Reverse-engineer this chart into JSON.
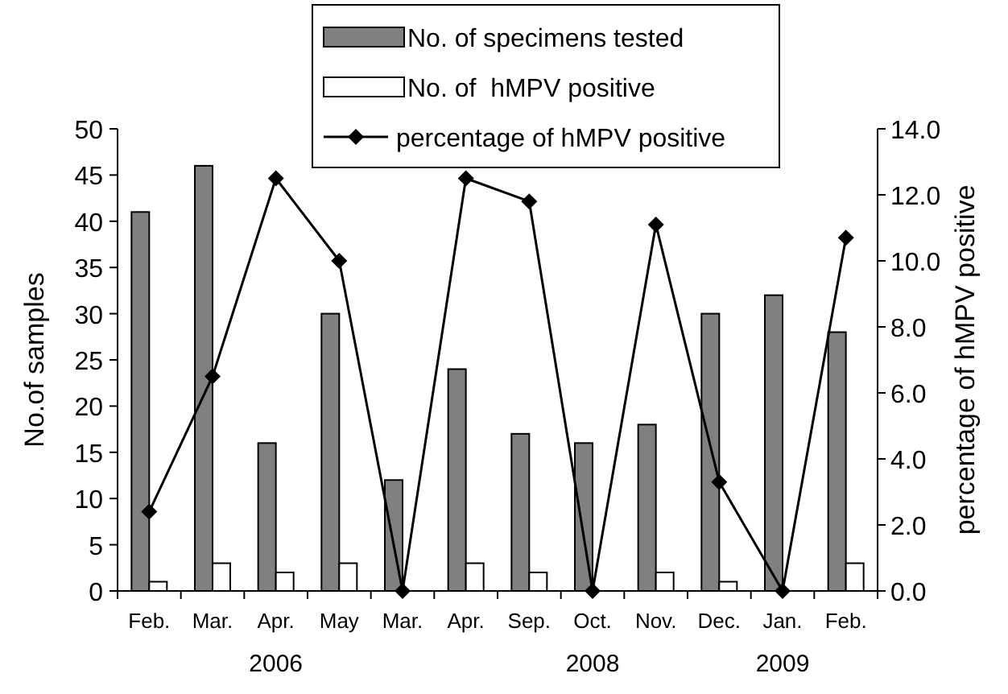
{
  "chart_data": {
    "type": "bar",
    "ylabel": "No.of samples",
    "y2label": "percentage of hMPV positive",
    "categories": [
      "Feb.",
      "Mar.",
      "Apr.",
      "May",
      "Mar.",
      "Apr.",
      "Sep.",
      "Oct.",
      "Nov.",
      "Dec.",
      "Jan.",
      "Feb."
    ],
    "series": [
      {
        "name": "No. of specimens tested",
        "color": "#808080",
        "values": [
          41,
          46,
          16,
          30,
          12,
          24,
          17,
          16,
          18,
          30,
          32,
          28
        ]
      },
      {
        "name": "No. of  hMPV positive",
        "color": "#ffffff",
        "values": [
          1,
          3,
          2,
          3,
          0,
          3,
          2,
          0,
          2,
          1,
          0,
          3
        ]
      },
      {
        "name": "percentage of hMPV positive",
        "type": "line",
        "axis": "y2",
        "color": "#000000",
        "marker": "diamond",
        "values": [
          2.4,
          6.5,
          12.5,
          10.0,
          0.0,
          12.5,
          11.8,
          0.0,
          11.1,
          3.3,
          0.0,
          10.7
        ]
      }
    ],
    "ylim": [
      0,
      50
    ],
    "yticks": [
      0,
      5,
      10,
      15,
      20,
      25,
      30,
      35,
      40,
      45,
      50
    ],
    "y2lim": [
      0,
      14
    ],
    "y2ticks": [
      {
        "value": 0,
        "label": "0.0"
      },
      {
        "value": 2,
        "label": "2.0"
      },
      {
        "value": 4,
        "label": "4.0"
      },
      {
        "value": 6,
        "label": "6.0"
      },
      {
        "value": 8,
        "label": "8.0"
      },
      {
        "value": 10,
        "label": "10.0"
      },
      {
        "value": 12,
        "label": "12.0"
      },
      {
        "value": 14,
        "label": "14.0"
      }
    ],
    "annotations": [
      "2006",
      "2008",
      "2009"
    ],
    "grid": false,
    "legend": "top"
  }
}
